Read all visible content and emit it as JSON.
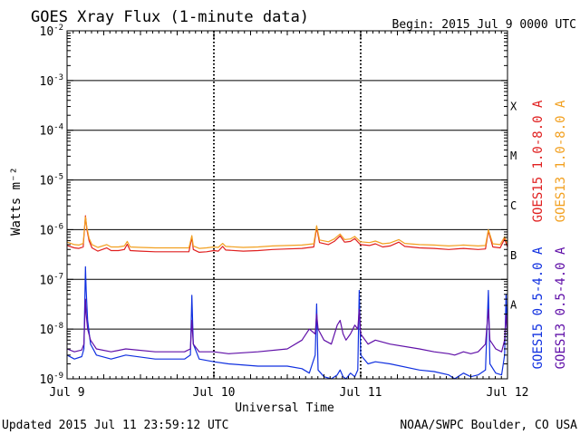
{
  "header": {
    "title": "GOES Xray Flux (1-minute data)",
    "begin": "Begin:  2015 Jul 9 0000 UTC"
  },
  "footer": {
    "updated": "Updated 2015 Jul 11 23:59:12 UTC",
    "credit": "NOAA/SWPC Boulder, CO USA"
  },
  "colors": {
    "goes15_long": "#e02020",
    "goes13_long": "#f2a020",
    "goes15_short": "#1030e0",
    "goes13_short": "#6010a8",
    "axes": "#000000"
  },
  "chart_data": {
    "type": "line",
    "title": "GOES Xray Flux (1-minute data)",
    "xlabel": "Universal Time",
    "ylabel": "Watts m⁻²",
    "yscale": "log",
    "ylim": [
      1e-09,
      0.01
    ],
    "xlim": [
      0,
      3
    ],
    "x_unit": "days since Jul 9 0000 UTC",
    "x_ticks": [
      {
        "value": 0,
        "label": "Jul 9"
      },
      {
        "value": 1,
        "label": "Jul 10"
      },
      {
        "value": 2,
        "label": "Jul 11"
      },
      {
        "value": 3,
        "label": "Jul 12"
      }
    ],
    "y_ticks": [
      {
        "exp": -9,
        "label": "10",
        "sup": "-9"
      },
      {
        "exp": -8,
        "label": "10",
        "sup": "-8"
      },
      {
        "exp": -7,
        "label": "10",
        "sup": "-7"
      },
      {
        "exp": -6,
        "label": "10",
        "sup": "-6"
      },
      {
        "exp": -5,
        "label": "10",
        "sup": "-5"
      },
      {
        "exp": -4,
        "label": "10",
        "sup": "-4"
      },
      {
        "exp": -3,
        "label": "10",
        "sup": "-3"
      },
      {
        "exp": -2,
        "label": "10",
        "sup": "-2"
      }
    ],
    "flare_classes": [
      {
        "label": "A",
        "exp": -7.5
      },
      {
        "label": "B",
        "exp": -6.5
      },
      {
        "label": "C",
        "exp": -5.5
      },
      {
        "label": "M",
        "exp": -4.5
      },
      {
        "label": "X",
        "exp": -3.5
      }
    ],
    "grid": "horizontal lines at each decade from 1e-8 to 1e-3; dotted vertical lines at day boundaries",
    "legend_placement": "right side, vertical text",
    "series": [
      {
        "name": "GOES15 1.0-8.0 A",
        "color": "#e02020",
        "points": [
          [
            0,
            4.8e-07
          ],
          [
            0.05,
            4.3e-07
          ],
          [
            0.08,
            4.2e-07
          ],
          [
            0.11,
            4.5e-07
          ],
          [
            0.125,
            1.9e-06
          ],
          [
            0.135,
            1e-06
          ],
          [
            0.15,
            6e-07
          ],
          [
            0.17,
            4.3e-07
          ],
          [
            0.21,
            3.7e-07
          ],
          [
            0.27,
            4.3e-07
          ],
          [
            0.3,
            3.8e-07
          ],
          [
            0.35,
            3.8e-07
          ],
          [
            0.39,
            4e-07
          ],
          [
            0.41,
            5.1e-07
          ],
          [
            0.43,
            3.8e-07
          ],
          [
            0.5,
            3.7e-07
          ],
          [
            0.6,
            3.6e-07
          ],
          [
            0.7,
            3.6e-07
          ],
          [
            0.8,
            3.6e-07
          ],
          [
            0.83,
            3.6e-07
          ],
          [
            0.85,
            7e-07
          ],
          [
            0.86,
            4e-07
          ],
          [
            0.9,
            3.5e-07
          ],
          [
            0.95,
            3.6e-07
          ],
          [
            1.0,
            3.8e-07
          ],
          [
            1.03,
            3.7e-07
          ],
          [
            1.06,
            4.6e-07
          ],
          [
            1.08,
            3.9e-07
          ],
          [
            1.2,
            3.7e-07
          ],
          [
            1.3,
            3.8e-07
          ],
          [
            1.4,
            4e-07
          ],
          [
            1.5,
            4.1e-07
          ],
          [
            1.6,
            4.2e-07
          ],
          [
            1.68,
            4.5e-07
          ],
          [
            1.7,
            1.1e-06
          ],
          [
            1.72,
            5.5e-07
          ],
          [
            1.78,
            5e-07
          ],
          [
            1.82,
            5.8e-07
          ],
          [
            1.86,
            7.5e-07
          ],
          [
            1.89,
            5.6e-07
          ],
          [
            1.93,
            5.8e-07
          ],
          [
            1.96,
            6.6e-07
          ],
          [
            1.99,
            5.3e-07
          ],
          [
            2.0,
            5e-07
          ],
          [
            2.06,
            4.8e-07
          ],
          [
            2.1,
            5.2e-07
          ],
          [
            2.15,
            4.5e-07
          ],
          [
            2.2,
            4.7e-07
          ],
          [
            2.26,
            5.6e-07
          ],
          [
            2.3,
            4.6e-07
          ],
          [
            2.4,
            4.3e-07
          ],
          [
            2.5,
            4.2e-07
          ],
          [
            2.6,
            4e-07
          ],
          [
            2.7,
            4.2e-07
          ],
          [
            2.8,
            4e-07
          ],
          [
            2.85,
            4.1e-07
          ],
          [
            2.87,
            9.5e-07
          ],
          [
            2.9,
            4.5e-07
          ],
          [
            2.95,
            4.3e-07
          ],
          [
            2.98,
            6.5e-07
          ],
          [
            3.0,
            4.5e-07
          ]
        ]
      },
      {
        "name": "GOES13 1.0-8.0 A",
        "color": "#f2a020",
        "points": [
          [
            0,
            5.6e-07
          ],
          [
            0.05,
            5e-07
          ],
          [
            0.08,
            4.9e-07
          ],
          [
            0.11,
            5.3e-07
          ],
          [
            0.125,
            1.8e-06
          ],
          [
            0.135,
            1.1e-06
          ],
          [
            0.15,
            6.7e-07
          ],
          [
            0.17,
            5e-07
          ],
          [
            0.21,
            4.4e-07
          ],
          [
            0.27,
            5e-07
          ],
          [
            0.3,
            4.5e-07
          ],
          [
            0.35,
            4.5e-07
          ],
          [
            0.39,
            4.7e-07
          ],
          [
            0.41,
            5.8e-07
          ],
          [
            0.43,
            4.5e-07
          ],
          [
            0.5,
            4.4e-07
          ],
          [
            0.6,
            4.3e-07
          ],
          [
            0.7,
            4.3e-07
          ],
          [
            0.8,
            4.3e-07
          ],
          [
            0.83,
            4.3e-07
          ],
          [
            0.85,
            7.6e-07
          ],
          [
            0.86,
            4.7e-07
          ],
          [
            0.9,
            4.2e-07
          ],
          [
            0.95,
            4.3e-07
          ],
          [
            1.0,
            4.5e-07
          ],
          [
            1.03,
            4.4e-07
          ],
          [
            1.06,
            5.3e-07
          ],
          [
            1.08,
            4.6e-07
          ],
          [
            1.2,
            4.4e-07
          ],
          [
            1.3,
            4.5e-07
          ],
          [
            1.4,
            4.7e-07
          ],
          [
            1.5,
            4.8e-07
          ],
          [
            1.6,
            4.9e-07
          ],
          [
            1.68,
            5.2e-07
          ],
          [
            1.7,
            1.2e-06
          ],
          [
            1.72,
            6.2e-07
          ],
          [
            1.78,
            5.7e-07
          ],
          [
            1.82,
            6.5e-07
          ],
          [
            1.86,
            8.2e-07
          ],
          [
            1.89,
            6.3e-07
          ],
          [
            1.93,
            6.5e-07
          ],
          [
            1.96,
            7.3e-07
          ],
          [
            1.99,
            6e-07
          ],
          [
            2.0,
            5.7e-07
          ],
          [
            2.06,
            5.5e-07
          ],
          [
            2.1,
            5.9e-07
          ],
          [
            2.15,
            5.2e-07
          ],
          [
            2.2,
            5.4e-07
          ],
          [
            2.26,
            6.3e-07
          ],
          [
            2.3,
            5.3e-07
          ],
          [
            2.4,
            5e-07
          ],
          [
            2.5,
            4.9e-07
          ],
          [
            2.6,
            4.7e-07
          ],
          [
            2.7,
            4.9e-07
          ],
          [
            2.8,
            4.7e-07
          ],
          [
            2.85,
            4.8e-07
          ],
          [
            2.87,
            1e-06
          ],
          [
            2.9,
            5.2e-07
          ],
          [
            2.95,
            5e-07
          ],
          [
            2.98,
            7.2e-07
          ],
          [
            3.0,
            5.2e-07
          ]
        ]
      },
      {
        "name": "GOES15 0.5-4.0 A",
        "color": "#1030e0",
        "points": [
          [
            0,
            3e-09
          ],
          [
            0.05,
            2.5e-09
          ],
          [
            0.1,
            2.8e-09
          ],
          [
            0.115,
            4e-09
          ],
          [
            0.125,
            1.8e-07
          ],
          [
            0.13,
            6e-08
          ],
          [
            0.14,
            1.5e-08
          ],
          [
            0.16,
            5e-09
          ],
          [
            0.2,
            3e-09
          ],
          [
            0.3,
            2.5e-09
          ],
          [
            0.4,
            3e-09
          ],
          [
            0.6,
            2.5e-09
          ],
          [
            0.8,
            2.5e-09
          ],
          [
            0.84,
            3e-09
          ],
          [
            0.85,
            4.8e-08
          ],
          [
            0.86,
            5e-09
          ],
          [
            0.9,
            2.5e-09
          ],
          [
            1.0,
            2.2e-09
          ],
          [
            1.1,
            2e-09
          ],
          [
            1.3,
            1.8e-09
          ],
          [
            1.5,
            1.8e-09
          ],
          [
            1.6,
            1.6e-09
          ],
          [
            1.65,
            1.3e-09
          ],
          [
            1.69,
            3e-09
          ],
          [
            1.7,
            3.2e-08
          ],
          [
            1.71,
            1.5e-09
          ],
          [
            1.75,
            1.1e-09
          ],
          [
            1.8,
            1e-09
          ],
          [
            1.84,
            1.2e-09
          ],
          [
            1.86,
            1.5e-09
          ],
          [
            1.88,
            1.1e-09
          ],
          [
            1.9,
            1e-09
          ],
          [
            1.93,
            1.3e-09
          ],
          [
            1.96,
            1.1e-09
          ],
          [
            1.98,
            1.5e-09
          ],
          [
            1.99,
            6e-08
          ],
          [
            2.0,
            3e-09
          ],
          [
            2.05,
            2e-09
          ],
          [
            2.1,
            2.2e-09
          ],
          [
            2.2,
            2e-09
          ],
          [
            2.4,
            1.5e-09
          ],
          [
            2.5,
            1.4e-09
          ],
          [
            2.6,
            1.2e-09
          ],
          [
            2.64,
            1e-09
          ],
          [
            2.7,
            1.3e-09
          ],
          [
            2.75,
            1.1e-09
          ],
          [
            2.8,
            1.2e-09
          ],
          [
            2.85,
            1.5e-09
          ],
          [
            2.87,
            6e-08
          ],
          [
            2.88,
            2e-09
          ],
          [
            2.92,
            1.3e-09
          ],
          [
            2.96,
            1.2e-09
          ],
          [
            2.98,
            3e-09
          ],
          [
            2.99,
            5e-08
          ],
          [
            3.0,
            5e-09
          ]
        ]
      },
      {
        "name": "GOES13 0.5-4.0 A",
        "color": "#6010a8",
        "points": [
          [
            0,
            4e-09
          ],
          [
            0.05,
            3.5e-09
          ],
          [
            0.1,
            3.8e-09
          ],
          [
            0.115,
            5e-09
          ],
          [
            0.125,
            4e-08
          ],
          [
            0.13,
            2e-08
          ],
          [
            0.14,
            1e-08
          ],
          [
            0.16,
            6e-09
          ],
          [
            0.2,
            4e-09
          ],
          [
            0.3,
            3.5e-09
          ],
          [
            0.4,
            4e-09
          ],
          [
            0.6,
            3.5e-09
          ],
          [
            0.8,
            3.5e-09
          ],
          [
            0.84,
            4e-09
          ],
          [
            0.85,
            1.5e-08
          ],
          [
            0.86,
            5e-09
          ],
          [
            0.9,
            3.5e-09
          ],
          [
            1.0,
            3.5e-09
          ],
          [
            1.1,
            3.2e-09
          ],
          [
            1.3,
            3.5e-09
          ],
          [
            1.5,
            4e-09
          ],
          [
            1.6,
            6e-09
          ],
          [
            1.65,
            1e-08
          ],
          [
            1.69,
            8e-09
          ],
          [
            1.7,
            2e-08
          ],
          [
            1.71,
            1e-08
          ],
          [
            1.75,
            6e-09
          ],
          [
            1.8,
            5e-09
          ],
          [
            1.84,
            1.2e-08
          ],
          [
            1.86,
            1.5e-08
          ],
          [
            1.88,
            8e-09
          ],
          [
            1.9,
            6e-09
          ],
          [
            1.93,
            8e-09
          ],
          [
            1.96,
            1.2e-08
          ],
          [
            1.98,
            1e-08
          ],
          [
            1.99,
            2.5e-08
          ],
          [
            2.0,
            8e-09
          ],
          [
            2.05,
            5e-09
          ],
          [
            2.1,
            6e-09
          ],
          [
            2.2,
            5e-09
          ],
          [
            2.4,
            4e-09
          ],
          [
            2.5,
            3.5e-09
          ],
          [
            2.6,
            3.2e-09
          ],
          [
            2.64,
            3e-09
          ],
          [
            2.7,
            3.5e-09
          ],
          [
            2.75,
            3.2e-09
          ],
          [
            2.8,
            3.5e-09
          ],
          [
            2.85,
            5e-09
          ],
          [
            2.87,
            2.5e-08
          ],
          [
            2.88,
            6e-09
          ],
          [
            2.92,
            4e-09
          ],
          [
            2.96,
            3.5e-09
          ],
          [
            2.98,
            6e-09
          ],
          [
            2.99,
            2e-08
          ],
          [
            3.0,
            8e-09
          ]
        ]
      }
    ]
  }
}
